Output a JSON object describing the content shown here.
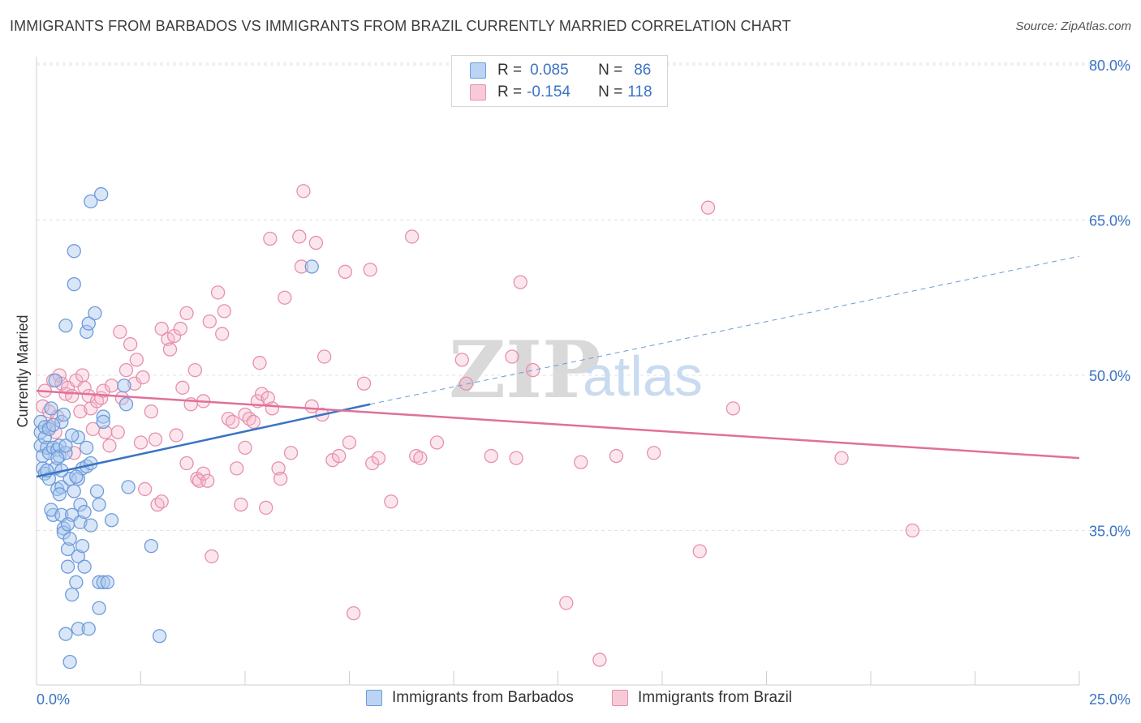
{
  "title": "IMMIGRANTS FROM BARBADOS VS IMMIGRANTS FROM BRAZIL CURRENTLY MARRIED CORRELATION CHART",
  "source": "Source: ZipAtlas.com",
  "watermark": {
    "zip": "ZIP",
    "atlas": "atlas"
  },
  "legend": {
    "series1": {
      "r_label": "R =",
      "r_value": "0.085",
      "n_label": "N =",
      "n_value": "86"
    },
    "series2": {
      "r_label": "R =",
      "r_value": "-0.154",
      "n_label": "N =",
      "n_value": "118"
    }
  },
  "chart_data": {
    "type": "scatter",
    "ylabel": "Currently Married",
    "x_tick_labels": [
      "0.0%",
      "25.0%"
    ],
    "y_tick_labels": [
      "35.0%",
      "50.0%",
      "65.0%",
      "80.0%"
    ],
    "xlim": [
      0,
      25
    ],
    "ylim": [
      20,
      82
    ],
    "y_ticks": [
      35,
      50,
      65,
      80
    ],
    "grid": true,
    "legend_position": "bottom-center",
    "colors": {
      "barbados": "#3b73c4",
      "barbados_fill": "#a9c8f0",
      "brazil": "#e0709a",
      "brazil_fill": "#f5b8cc"
    },
    "series": [
      {
        "name": "Immigrants from Barbados",
        "color": "#3b73c4",
        "trend": {
          "x": [
            0,
            8
          ],
          "y": [
            40.2,
            47.2
          ],
          "dashed_to": {
            "x": 25,
            "y": 61.5
          }
        },
        "points": [
          [
            0.1,
            45.5
          ],
          [
            0.1,
            44.5
          ],
          [
            0.1,
            43.2
          ],
          [
            0.15,
            42.2
          ],
          [
            0.15,
            41.0
          ],
          [
            0.2,
            40.5
          ],
          [
            0.2,
            44.0
          ],
          [
            0.2,
            45.0
          ],
          [
            0.25,
            43.0
          ],
          [
            0.3,
            42.5
          ],
          [
            0.3,
            40.0
          ],
          [
            0.35,
            46.8
          ],
          [
            0.4,
            43.0
          ],
          [
            0.4,
            36.5
          ],
          [
            0.35,
            37.0
          ],
          [
            0.45,
            49.5
          ],
          [
            0.5,
            39.0
          ],
          [
            0.5,
            42.8
          ],
          [
            0.55,
            42.2
          ],
          [
            0.55,
            43.2
          ],
          [
            0.6,
            45.5
          ],
          [
            0.6,
            36.5
          ],
          [
            0.6,
            39.2
          ],
          [
            0.65,
            35.2
          ],
          [
            0.65,
            34.8
          ],
          [
            0.7,
            42.5
          ],
          [
            0.7,
            54.8
          ],
          [
            0.7,
            25.0
          ],
          [
            0.75,
            33.2
          ],
          [
            0.75,
            31.5
          ],
          [
            0.8,
            40.0
          ],
          [
            0.8,
            34.2
          ],
          [
            0.8,
            22.3
          ],
          [
            0.85,
            36.5
          ],
          [
            0.85,
            28.8
          ],
          [
            0.9,
            38.8
          ],
          [
            0.9,
            58.8
          ],
          [
            0.9,
            62.0
          ],
          [
            0.95,
            30.0
          ],
          [
            1.0,
            44.0
          ],
          [
            1.0,
            40.0
          ],
          [
            1.0,
            32.5
          ],
          [
            1.0,
            25.5
          ],
          [
            1.05,
            35.8
          ],
          [
            1.05,
            37.5
          ],
          [
            1.1,
            41.0
          ],
          [
            1.1,
            33.5
          ],
          [
            1.15,
            31.5
          ],
          [
            1.2,
            41.2
          ],
          [
            1.2,
            43.0
          ],
          [
            1.2,
            54.2
          ],
          [
            1.25,
            55.0
          ],
          [
            1.3,
            41.5
          ],
          [
            1.3,
            35.5
          ],
          [
            1.25,
            25.5
          ],
          [
            1.3,
            66.8
          ],
          [
            1.4,
            56.0
          ],
          [
            1.45,
            38.8
          ],
          [
            1.5,
            30.0
          ],
          [
            1.5,
            27.5
          ],
          [
            1.5,
            37.5
          ],
          [
            1.55,
            67.5
          ],
          [
            1.6,
            30.0
          ],
          [
            1.6,
            46.0
          ],
          [
            1.6,
            45.5
          ],
          [
            1.7,
            30.0
          ],
          [
            1.8,
            36.0
          ],
          [
            2.1,
            49.0
          ],
          [
            2.15,
            47.2
          ],
          [
            2.2,
            39.2
          ],
          [
            2.75,
            33.5
          ],
          [
            2.95,
            24.8
          ],
          [
            6.6,
            60.5
          ],
          [
            0.3,
            44.8
          ],
          [
            0.45,
            41.0
          ],
          [
            0.5,
            42.0
          ],
          [
            0.6,
            40.8
          ],
          [
            0.7,
            43.2
          ],
          [
            0.4,
            45.2
          ],
          [
            0.25,
            40.8
          ],
          [
            0.95,
            40.2
          ],
          [
            0.85,
            44.2
          ],
          [
            0.55,
            38.5
          ],
          [
            1.15,
            36.8
          ],
          [
            0.75,
            35.6
          ],
          [
            0.65,
            46.2
          ]
        ]
      },
      {
        "name": "Immigrants from Brazil",
        "color": "#e0709a",
        "trend": {
          "x": [
            0,
            25
          ],
          "y": [
            48.5,
            42.0
          ]
        },
        "points": [
          [
            0.2,
            48.5
          ],
          [
            0.3,
            46.5
          ],
          [
            0.3,
            45.0
          ],
          [
            0.4,
            49.5
          ],
          [
            0.45,
            44.5
          ],
          [
            0.5,
            46.0
          ],
          [
            0.55,
            50.0
          ],
          [
            0.6,
            49.2
          ],
          [
            0.7,
            48.2
          ],
          [
            0.75,
            48.8
          ],
          [
            0.85,
            48.0
          ],
          [
            0.9,
            42.5
          ],
          [
            0.95,
            49.5
          ],
          [
            1.05,
            46.5
          ],
          [
            1.1,
            50.0
          ],
          [
            1.15,
            48.8
          ],
          [
            1.25,
            48.0
          ],
          [
            1.3,
            46.8
          ],
          [
            1.35,
            44.8
          ],
          [
            1.45,
            47.5
          ],
          [
            1.55,
            47.8
          ],
          [
            1.6,
            48.5
          ],
          [
            1.65,
            44.5
          ],
          [
            1.75,
            43.2
          ],
          [
            1.8,
            49.0
          ],
          [
            1.95,
            44.5
          ],
          [
            2.0,
            54.2
          ],
          [
            2.05,
            47.8
          ],
          [
            2.15,
            50.5
          ],
          [
            2.25,
            53.0
          ],
          [
            2.35,
            49.2
          ],
          [
            2.4,
            51.5
          ],
          [
            2.5,
            43.5
          ],
          [
            2.55,
            49.8
          ],
          [
            2.6,
            39.0
          ],
          [
            2.75,
            46.5
          ],
          [
            2.85,
            43.8
          ],
          [
            2.9,
            37.5
          ],
          [
            3.0,
            37.8
          ],
          [
            3.0,
            54.5
          ],
          [
            3.15,
            53.5
          ],
          [
            3.2,
            52.5
          ],
          [
            3.3,
            53.8
          ],
          [
            3.35,
            44.2
          ],
          [
            3.45,
            54.5
          ],
          [
            3.5,
            48.8
          ],
          [
            3.6,
            56.0
          ],
          [
            3.6,
            41.5
          ],
          [
            3.7,
            47.2
          ],
          [
            3.8,
            50.5
          ],
          [
            3.85,
            40.0
          ],
          [
            3.9,
            39.8
          ],
          [
            4.0,
            40.5
          ],
          [
            4.0,
            47.5
          ],
          [
            4.1,
            39.8
          ],
          [
            4.15,
            55.2
          ],
          [
            4.2,
            32.5
          ],
          [
            4.35,
            58.0
          ],
          [
            4.45,
            54.0
          ],
          [
            4.5,
            56.2
          ],
          [
            4.6,
            45.8
          ],
          [
            4.7,
            45.5
          ],
          [
            4.8,
            41.0
          ],
          [
            4.9,
            37.5
          ],
          [
            5.0,
            46.2
          ],
          [
            5.0,
            43.0
          ],
          [
            5.1,
            45.8
          ],
          [
            5.2,
            45.5
          ],
          [
            5.3,
            47.5
          ],
          [
            5.35,
            51.2
          ],
          [
            5.4,
            48.2
          ],
          [
            5.5,
            37.2
          ],
          [
            5.55,
            47.8
          ],
          [
            5.6,
            63.2
          ],
          [
            5.65,
            46.8
          ],
          [
            5.8,
            41.0
          ],
          [
            5.85,
            40.0
          ],
          [
            5.95,
            57.5
          ],
          [
            6.1,
            42.5
          ],
          [
            6.3,
            63.4
          ],
          [
            6.35,
            60.5
          ],
          [
            6.4,
            67.8
          ],
          [
            6.6,
            47.0
          ],
          [
            6.7,
            62.8
          ],
          [
            6.85,
            46.2
          ],
          [
            6.9,
            51.8
          ],
          [
            7.1,
            41.8
          ],
          [
            7.25,
            42.2
          ],
          [
            7.4,
            60.0
          ],
          [
            7.5,
            43.5
          ],
          [
            7.6,
            27.0
          ],
          [
            7.85,
            49.2
          ],
          [
            8.0,
            60.2
          ],
          [
            8.05,
            41.5
          ],
          [
            8.2,
            42.0
          ],
          [
            8.5,
            37.8
          ],
          [
            9.0,
            63.4
          ],
          [
            9.1,
            42.2
          ],
          [
            9.2,
            42.0
          ],
          [
            9.6,
            43.5
          ],
          [
            10.2,
            51.5
          ],
          [
            10.3,
            49.2
          ],
          [
            10.9,
            42.2
          ],
          [
            11.4,
            51.8
          ],
          [
            11.5,
            42.0
          ],
          [
            11.6,
            59.0
          ],
          [
            11.9,
            50.5
          ],
          [
            12.7,
            28.0
          ],
          [
            13.05,
            41.6
          ],
          [
            13.5,
            22.5
          ],
          [
            13.9,
            42.2
          ],
          [
            14.8,
            42.5
          ],
          [
            15.9,
            33.0
          ],
          [
            16.1,
            66.2
          ],
          [
            16.7,
            46.8
          ],
          [
            19.3,
            42.0
          ],
          [
            21.0,
            35.0
          ],
          [
            0.15,
            47.0
          ]
        ]
      }
    ]
  },
  "bottom_legend": [
    "Immigrants from Barbados",
    "Immigrants from Brazil"
  ]
}
